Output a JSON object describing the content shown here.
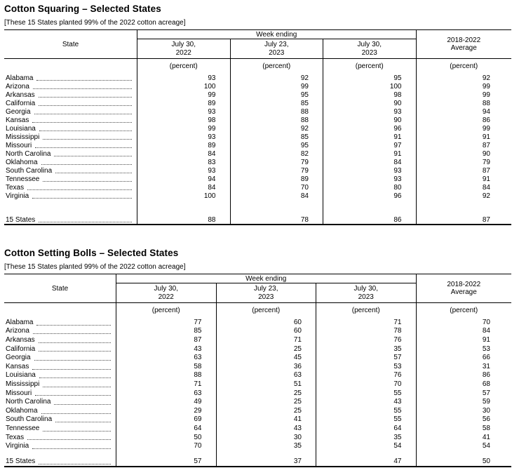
{
  "page": {
    "background": "#ffffff",
    "text_color": "#000000",
    "border_color": "#000000"
  },
  "tables": [
    {
      "title": "Cotton Squaring – Selected States",
      "note": "[These 15 States planted 99% of the 2022 cotton acreage]",
      "header": {
        "state_label": "State",
        "week_ending_label": "Week ending",
        "week_columns": [
          "July 30,\n2022",
          "July 23,\n2023",
          "July 30,\n2023"
        ],
        "average_label": "2018-2022\nAverage",
        "unit_label": "(percent)"
      },
      "rows": [
        {
          "state": "Alabama",
          "values": [
            93,
            92,
            95,
            92
          ]
        },
        {
          "state": "Arizona",
          "values": [
            100,
            99,
            100,
            99
          ]
        },
        {
          "state": "Arkansas",
          "values": [
            99,
            95,
            98,
            99
          ]
        },
        {
          "state": "California",
          "values": [
            89,
            85,
            90,
            88
          ]
        },
        {
          "state": "Georgia",
          "values": [
            93,
            88,
            93,
            94
          ]
        },
        {
          "state": "Kansas",
          "values": [
            98,
            88,
            90,
            86
          ]
        },
        {
          "state": "Louisiana",
          "values": [
            99,
            92,
            96,
            99
          ]
        },
        {
          "state": "Mississippi",
          "values": [
            93,
            85,
            91,
            91
          ]
        },
        {
          "state": "Missouri",
          "values": [
            89,
            95,
            97,
            87
          ]
        },
        {
          "state": "North Carolina",
          "values": [
            84,
            82,
            91,
            90
          ]
        },
        {
          "state": "Oklahoma",
          "values": [
            83,
            79,
            84,
            79
          ]
        },
        {
          "state": "South Carolina",
          "values": [
            93,
            79,
            93,
            87
          ]
        },
        {
          "state": "Tennessee",
          "values": [
            94,
            89,
            93,
            91
          ]
        },
        {
          "state": "Texas",
          "values": [
            84,
            70,
            80,
            84
          ]
        },
        {
          "state": "Virginia",
          "values": [
            100,
            84,
            96,
            92
          ]
        }
      ],
      "total": {
        "state": "15 States",
        "values": [
          88,
          78,
          86,
          87
        ]
      }
    },
    {
      "title": "Cotton Setting Bolls – Selected States",
      "note": "[These 15 States planted 99% of the 2022 cotton acreage]",
      "header": {
        "state_label": "State",
        "week_ending_label": "Week ending",
        "week_columns": [
          "July 30,\n2022",
          "July 23,\n2023",
          "July 30,\n2023"
        ],
        "average_label": "2018-2022\nAverage",
        "unit_label": "(percent)"
      },
      "rows": [
        {
          "state": "Alabama",
          "values": [
            77,
            60,
            71,
            70
          ]
        },
        {
          "state": "Arizona",
          "values": [
            85,
            60,
            78,
            84
          ]
        },
        {
          "state": "Arkansas",
          "values": [
            87,
            71,
            76,
            91
          ]
        },
        {
          "state": "California",
          "values": [
            43,
            25,
            35,
            53
          ]
        },
        {
          "state": "Georgia",
          "values": [
            63,
            45,
            57,
            66
          ]
        },
        {
          "state": "Kansas",
          "values": [
            58,
            36,
            53,
            31
          ]
        },
        {
          "state": "Louisiana",
          "values": [
            88,
            63,
            76,
            86
          ]
        },
        {
          "state": "Mississippi",
          "values": [
            71,
            51,
            70,
            68
          ]
        },
        {
          "state": "Missouri",
          "values": [
            63,
            25,
            55,
            57
          ]
        },
        {
          "state": "North Carolina",
          "values": [
            49,
            25,
            43,
            59
          ]
        },
        {
          "state": "Oklahoma",
          "values": [
            29,
            25,
            55,
            30
          ]
        },
        {
          "state": "South Carolina",
          "values": [
            69,
            41,
            55,
            56
          ]
        },
        {
          "state": "Tennessee",
          "values": [
            64,
            43,
            64,
            58
          ]
        },
        {
          "state": "Texas",
          "values": [
            50,
            30,
            35,
            41
          ]
        },
        {
          "state": "Virginia",
          "values": [
            70,
            35,
            54,
            54
          ]
        }
      ],
      "total": {
        "state": "15 States",
        "values": [
          57,
          37,
          47,
          50
        ]
      }
    }
  ]
}
